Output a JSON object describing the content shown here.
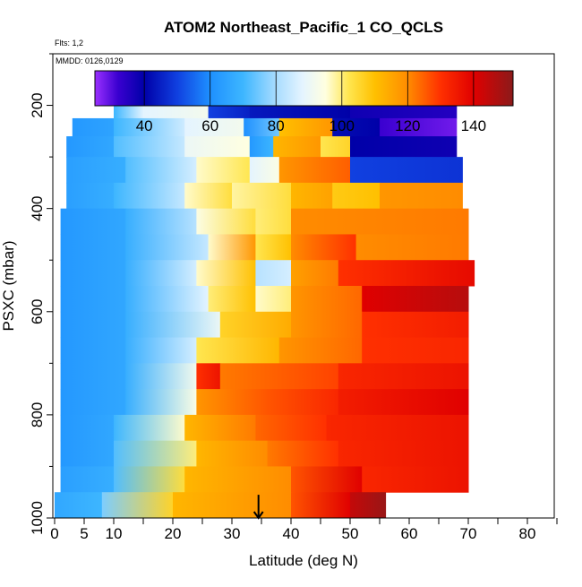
{
  "chart_data": {
    "type": "heatmap",
    "title": "ATOM2 Northeast_Pacific_1 CO_QCLS",
    "flights_label": "Flts: 1,2",
    "dates_label": "MMDD: 0126,0129",
    "xlabel": "Latitude (deg N)",
    "ylabel": "PSXC (mbar)",
    "xlim": [
      0,
      85
    ],
    "ylim": [
      1000,
      100
    ],
    "x_ticks": [
      0,
      5,
      10,
      20,
      30,
      40,
      50,
      60,
      70,
      80
    ],
    "x_minor_ticks": [
      15,
      25,
      35,
      45,
      55,
      65,
      75,
      85
    ],
    "y_ticks": [
      200,
      400,
      600,
      800,
      1000
    ],
    "y_minor_ticks": [
      100,
      300,
      500,
      700,
      900
    ],
    "colorbar": {
      "range": [
        25,
        152
      ],
      "ticks": [
        40,
        60,
        80,
        100,
        120,
        140
      ],
      "stops": [
        [
          25,
          "#9b30ff"
        ],
        [
          32,
          "#3a00d0"
        ],
        [
          40,
          "#0000a8"
        ],
        [
          50,
          "#1040e0"
        ],
        [
          60,
          "#1e90ff"
        ],
        [
          70,
          "#3db6ff"
        ],
        [
          80,
          "#a8dcff"
        ],
        [
          88,
          "#e4f4ff"
        ],
        [
          95,
          "#ffffe0"
        ],
        [
          102,
          "#ffe650"
        ],
        [
          110,
          "#ffc000"
        ],
        [
          120,
          "#ff8c00"
        ],
        [
          130,
          "#ff3000"
        ],
        [
          140,
          "#e00000"
        ],
        [
          152,
          "#8b1a1a"
        ]
      ]
    },
    "curtain": [
      {
        "p_top": 180,
        "p_bot": 225,
        "segments": [
          [
            10,
            15,
            70,
            88
          ],
          [
            15,
            26,
            88,
            92
          ],
          [
            26,
            33,
            50,
            45
          ],
          [
            33,
            50,
            44,
            40
          ],
          [
            50,
            68,
            38,
            35
          ]
        ]
      },
      {
        "p_top": 225,
        "p_bot": 260,
        "segments": [
          [
            3,
            10,
            62,
            65
          ],
          [
            10,
            22,
            70,
            85
          ],
          [
            22,
            32,
            88,
            92
          ],
          [
            32,
            38,
            60,
            75
          ],
          [
            38,
            47,
            110,
            118
          ],
          [
            47,
            55,
            42,
            40
          ],
          [
            55,
            68,
            32,
            28
          ]
        ]
      },
      {
        "p_top": 260,
        "p_bot": 300,
        "segments": [
          [
            2,
            10,
            62,
            66
          ],
          [
            10,
            22,
            72,
            84
          ],
          [
            22,
            33,
            90,
            95
          ],
          [
            33,
            37,
            62,
            70
          ],
          [
            37,
            45,
            112,
            118
          ],
          [
            45,
            50,
            102,
            106
          ],
          [
            50,
            68,
            40,
            38
          ]
        ]
      },
      {
        "p_top": 300,
        "p_bot": 350,
        "segments": [
          [
            2,
            12,
            64,
            68
          ],
          [
            12,
            24,
            72,
            86
          ],
          [
            24,
            33,
            96,
            102
          ],
          [
            33,
            38,
            88,
            94
          ],
          [
            38,
            50,
            118,
            125
          ],
          [
            50,
            69,
            50,
            48
          ]
        ]
      },
      {
        "p_top": 350,
        "p_bot": 400,
        "segments": [
          [
            2,
            10,
            64,
            68
          ],
          [
            10,
            22,
            70,
            84
          ],
          [
            22,
            30,
            96,
            104
          ],
          [
            30,
            40,
            98,
            104
          ],
          [
            40,
            47,
            112,
            116
          ],
          [
            47,
            55,
            108,
            110
          ],
          [
            55,
            69,
            118,
            120
          ]
        ]
      },
      {
        "p_top": 400,
        "p_bot": 450,
        "segments": [
          [
            1,
            12,
            62,
            66
          ],
          [
            12,
            24,
            68,
            82
          ],
          [
            24,
            34,
            94,
            104
          ],
          [
            34,
            40,
            100,
            104
          ],
          [
            40,
            70,
            120,
            122
          ]
        ]
      },
      {
        "p_top": 450,
        "p_bot": 500,
        "segments": [
          [
            1,
            12,
            62,
            66
          ],
          [
            12,
            26,
            68,
            84
          ],
          [
            26,
            34,
            96,
            118
          ],
          [
            34,
            40,
            102,
            110
          ],
          [
            40,
            51,
            120,
            130
          ],
          [
            51,
            70,
            120,
            122
          ]
        ]
      },
      {
        "p_top": 500,
        "p_bot": 550,
        "segments": [
          [
            1,
            12,
            62,
            66
          ],
          [
            12,
            24,
            68,
            86
          ],
          [
            24,
            34,
            96,
            110
          ],
          [
            34,
            40,
            82,
            86
          ],
          [
            40,
            48,
            116,
            122
          ],
          [
            48,
            71,
            130,
            138
          ]
        ]
      },
      {
        "p_top": 550,
        "p_bot": 600,
        "segments": [
          [
            1,
            12,
            62,
            66
          ],
          [
            12,
            26,
            68,
            88
          ],
          [
            26,
            34,
            100,
            110
          ],
          [
            34,
            40,
            96,
            100
          ],
          [
            40,
            52,
            118,
            124
          ],
          [
            52,
            70,
            140,
            146
          ]
        ]
      },
      {
        "p_top": 600,
        "p_bot": 650,
        "segments": [
          [
            1,
            12,
            62,
            66
          ],
          [
            12,
            28,
            68,
            90
          ],
          [
            28,
            40,
            106,
            114
          ],
          [
            40,
            52,
            118,
            124
          ],
          [
            52,
            70,
            130,
            134
          ]
        ]
      },
      {
        "p_top": 650,
        "p_bot": 700,
        "segments": [
          [
            1,
            12,
            62,
            66
          ],
          [
            12,
            24,
            68,
            86
          ],
          [
            24,
            38,
            102,
            112
          ],
          [
            38,
            52,
            118,
            124
          ],
          [
            52,
            70,
            130,
            132
          ]
        ]
      },
      {
        "p_top": 700,
        "p_bot": 750,
        "segments": [
          [
            1,
            12,
            62,
            66
          ],
          [
            12,
            24,
            68,
            92
          ],
          [
            24,
            28,
            130,
            136
          ],
          [
            28,
            48,
            122,
            128
          ],
          [
            48,
            70,
            132,
            136
          ]
        ]
      },
      {
        "p_top": 750,
        "p_bot": 800,
        "segments": [
          [
            1,
            12,
            62,
            66
          ],
          [
            12,
            24,
            68,
            94
          ],
          [
            24,
            36,
            118,
            126
          ],
          [
            36,
            48,
            126,
            132
          ],
          [
            48,
            70,
            134,
            140
          ]
        ]
      },
      {
        "p_top": 800,
        "p_bot": 850,
        "segments": [
          [
            1,
            10,
            62,
            66
          ],
          [
            10,
            22,
            70,
            96
          ],
          [
            22,
            34,
            112,
            122
          ],
          [
            34,
            46,
            124,
            130
          ],
          [
            46,
            70,
            132,
            136
          ]
        ]
      },
      {
        "p_top": 850,
        "p_bot": 900,
        "segments": [
          [
            1,
            10,
            62,
            66
          ],
          [
            10,
            24,
            72,
            100
          ],
          [
            24,
            36,
            112,
            120
          ],
          [
            36,
            48,
            122,
            130
          ],
          [
            48,
            70,
            132,
            136
          ]
        ]
      },
      {
        "p_top": 900,
        "p_bot": 950,
        "segments": [
          [
            1,
            10,
            64,
            68
          ],
          [
            10,
            22,
            72,
            104
          ],
          [
            22,
            40,
            112,
            120
          ],
          [
            40,
            52,
            126,
            140
          ],
          [
            52,
            70,
            132,
            136
          ]
        ]
      },
      {
        "p_top": 950,
        "p_bot": 1005,
        "segments": [
          [
            0,
            8,
            66,
            70
          ],
          [
            8,
            20,
            76,
            106
          ],
          [
            20,
            40,
            112,
            120
          ],
          [
            40,
            50,
            126,
            140
          ],
          [
            50,
            56,
            144,
            150
          ]
        ]
      }
    ],
    "marker": {
      "lat": 34.5,
      "p_from": 955,
      "p_to": 1000
    }
  }
}
